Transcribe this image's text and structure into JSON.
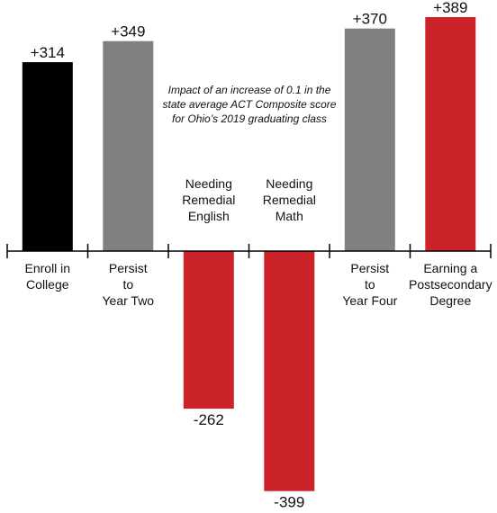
{
  "chart_data": {
    "type": "bar",
    "categories": [
      [
        "Enroll in",
        "College"
      ],
      [
        "Persist",
        "to",
        "Year Two"
      ],
      [
        "Needing",
        "Remedial",
        "English"
      ],
      [
        "Needing",
        "Remedial",
        "Math"
      ],
      [
        "Persist",
        "to",
        "Year Four"
      ],
      [
        "Earning a",
        "Postsecondary",
        "Degree"
      ]
    ],
    "values": [
      314,
      349,
      -262,
      -399,
      370,
      389
    ],
    "value_labels": [
      "+314",
      "+349",
      "-262",
      "-399",
      "+370",
      "+389"
    ],
    "colors": [
      "#000000",
      "#808080",
      "#cc2229",
      "#cc2229",
      "#808080",
      "#cc2229"
    ],
    "annotation": [
      "Impact of an increase of  0.1 in the",
      "state average ACT Composite score",
      "for Ohio’s 2019 graduating class"
    ],
    "ylim": [
      -399,
      389
    ],
    "grid": false,
    "legend": "none"
  }
}
